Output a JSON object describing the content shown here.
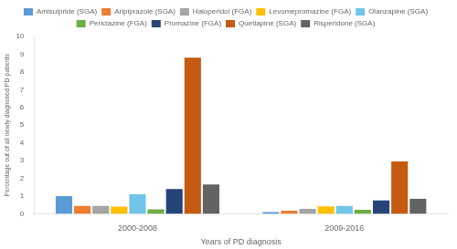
{
  "chart_data": {
    "type": "bar",
    "categories": [
      "2000-2008",
      "2009-2016"
    ],
    "series": [
      {
        "name": "Amisulpride (SGA)",
        "color": "#5B9BD5",
        "values": [
          1.0,
          0.1
        ]
      },
      {
        "name": "Aripiprazole (SGA)",
        "color": "#ED7D31",
        "values": [
          0.45,
          0.18
        ]
      },
      {
        "name": "Haloperidol (FGA)",
        "color": "#A5A5A5",
        "values": [
          0.45,
          0.28
        ]
      },
      {
        "name": "Levomepromazine (FGA)",
        "color": "#FFC000",
        "values": [
          0.4,
          0.42
        ]
      },
      {
        "name": "Olanzapine (SGA)",
        "color": "#70C5E8",
        "values": [
          1.1,
          0.45
        ]
      },
      {
        "name": "Periciazine (FGA)",
        "color": "#70AD47",
        "values": [
          0.25,
          0.23
        ]
      },
      {
        "name": "Promazine (FGA)",
        "color": "#264478",
        "values": [
          1.4,
          0.75
        ]
      },
      {
        "name": "Quetiapine (SGA)",
        "color": "#C55A11",
        "values": [
          8.8,
          2.95
        ]
      },
      {
        "name": "Risperidone (SGA)",
        "color": "#636363",
        "values": [
          1.65,
          0.85
        ]
      }
    ],
    "xlabel": "Years of PD diagnosis",
    "ylabel": "Percentage out of all newly diagnosed PD patients",
    "ylim": [
      0,
      10
    ],
    "yticks": [
      0,
      1,
      2,
      3,
      4,
      5,
      6,
      7,
      8,
      9,
      10
    ],
    "grid": false,
    "legend": "top"
  }
}
